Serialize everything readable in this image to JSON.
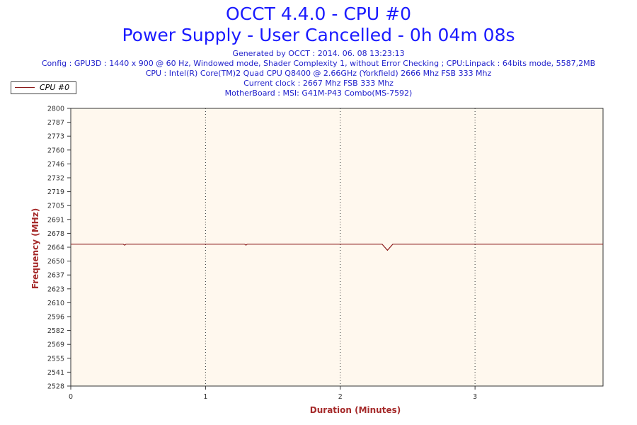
{
  "header": {
    "title_line1": "OCCT 4.4.0 - CPU #0",
    "title_line2": "Power Supply - User Cancelled - 0h 04m 08s",
    "info_lines": [
      "Generated by OCCT : 2014. 06. 08 13:23:13",
      "Config : GPU3D : 1440 x 900 @ 60 Hz, Windowed mode, Shader Complexity 1, without Error Checking ; CPU:Linpack : 64bits mode, 5587,2MB",
      "CPU : Intel(R) Core(TM)2 Quad CPU Q8400 @ 2.66GHz (Yorkfield) 2666 Mhz FSB 333 Mhz",
      "Current clock : 2667 Mhz FSB 333 Mhz",
      "MotherBoard : MSI: G41M-P43 Combo(MS-7592)"
    ]
  },
  "colors": {
    "plot_background": "#fff8ee",
    "series_line": "#8b1a1a",
    "axis_title": "#a52a2a",
    "title": "#1a1aff"
  },
  "chart_data": {
    "type": "line",
    "title": "OCCT 4.4.0 - CPU #0",
    "subtitle": "Power Supply - User Cancelled - 0h 04m 08s",
    "xlabel": "Duration (Minutes)",
    "ylabel": "Frequency (MHz)",
    "xlim": [
      0,
      3.95
    ],
    "ylim": [
      2528,
      2800
    ],
    "x_ticks": [
      "0",
      "1",
      "2",
      "3"
    ],
    "y_ticks": [
      "2800",
      "2787",
      "2773",
      "2760",
      "2746",
      "2732",
      "2719",
      "2705",
      "2691",
      "2678",
      "2664",
      "2650",
      "2637",
      "2623",
      "2610",
      "2596",
      "2582",
      "2569",
      "2555",
      "2541",
      "2528"
    ],
    "grid": "vertical dotted at each minute",
    "legend": "top-left",
    "series": [
      {
        "name": "CPU #0",
        "x": [
          0,
          0.39,
          0.4,
          0.41,
          1.29,
          1.3,
          1.31,
          2.31,
          2.33,
          2.35,
          2.37,
          2.39,
          3.95
        ],
        "y": [
          2667,
          2667,
          2666,
          2667,
          2667,
          2666,
          2667,
          2667,
          2664,
          2661,
          2664,
          2667,
          2667
        ]
      }
    ]
  }
}
